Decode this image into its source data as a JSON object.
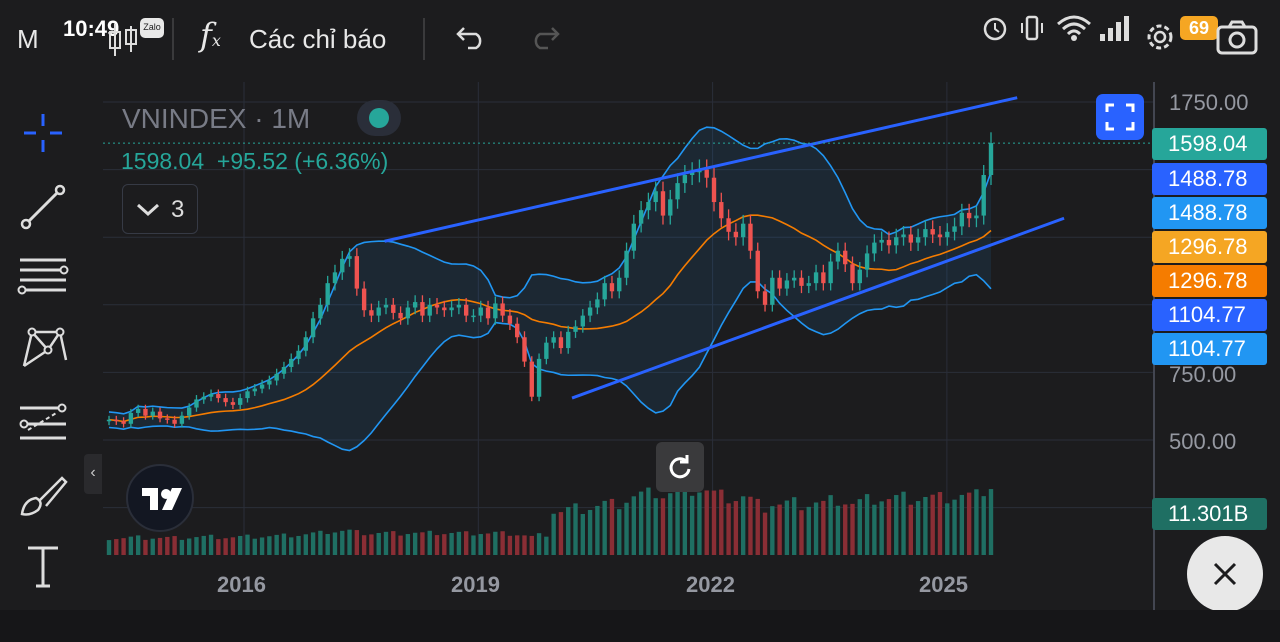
{
  "status_bar": {
    "time": "10:49",
    "battery": "69"
  },
  "toolbar": {
    "interval": "M",
    "indicators_label": "Các chỉ báo",
    "zalo_label": "Zalo"
  },
  "legend": {
    "symbol": "VNINDEX · 1M",
    "ohlc_line": "1598.04  +95.52 (+6.36%)",
    "collapse_count": "3"
  },
  "price_axis": {
    "labels": [
      "1750.00",
      "750.00",
      "500.00"
    ],
    "tags": [
      {
        "text": "1598.04",
        "color": "#26a69a",
        "y": 1598.04
      },
      {
        "text": "1488.78",
        "color": "#2962ff",
        "y": 1488.78
      },
      {
        "text": "1488.78",
        "color": "#2196f3",
        "y": 1488.78
      },
      {
        "text": "1296.78",
        "color": "#f5a623",
        "y": 1296.78
      },
      {
        "text": "1296.78",
        "color": "#f57c00",
        "y": 1296.78
      },
      {
        "text": "1104.77",
        "color": "#2962ff",
        "y": 1104.77
      },
      {
        "text": "1104.77",
        "color": "#2196f3",
        "y": 1104.77
      }
    ],
    "volume_tag": "11.301B"
  },
  "time_axis": {
    "labels": [
      "2016",
      "2019",
      "2022",
      "2025"
    ]
  },
  "colors": {
    "up": "#26a69a",
    "down": "#ef5350",
    "ma": "#f57c00",
    "bands": "#2196f3",
    "channel": "#2962ff",
    "vol_up": "#1f6f63",
    "vol_down": "#8a2e35"
  },
  "chart_data": {
    "type": "candlestick",
    "symbol": "VNINDEX",
    "interval": "1M",
    "y_scale": "linear",
    "last_close": 1598.04,
    "change": 95.52,
    "change_pct": 6.36,
    "yticks": [
      500,
      750,
      1750
    ],
    "xticks": [
      "2016",
      "2019",
      "2022",
      "2025"
    ],
    "closes": [
      575,
      570,
      560,
      600,
      615,
      590,
      605,
      580,
      575,
      560,
      590,
      620,
      650,
      660,
      670,
      655,
      640,
      630,
      655,
      680,
      690,
      705,
      720,
      745,
      770,
      800,
      830,
      880,
      950,
      1000,
      1080,
      1120,
      1170,
      1180,
      1060,
      980,
      960,
      990,
      1000,
      970,
      950,
      990,
      1010,
      960,
      1000,
      990,
      980,
      990,
      1000,
      960,
      960,
      990,
      950,
      1005,
      960,
      930,
      880,
      790,
      660,
      800,
      860,
      880,
      840,
      900,
      920,
      960,
      990,
      1020,
      1080,
      1050,
      1100,
      1200,
      1300,
      1350,
      1380,
      1420,
      1330,
      1390,
      1450,
      1480,
      1490,
      1500,
      1470,
      1380,
      1320,
      1270,
      1250,
      1300,
      1200,
      1050,
      1000,
      1100,
      1060,
      1090,
      1100,
      1070,
      1080,
      1120,
      1080,
      1160,
      1200,
      1150,
      1080,
      1130,
      1190,
      1230,
      1240,
      1220,
      1250,
      1260,
      1230,
      1250,
      1280,
      1260,
      1250,
      1270,
      1290,
      1340,
      1320,
      1330,
      1480,
      1598
    ],
    "overlays": [
      {
        "name": "Bollinger basis (MA)",
        "color": "#f57c00"
      },
      {
        "name": "Bollinger upper",
        "color": "#2196f3"
      },
      {
        "name": "Bollinger lower",
        "color": "#2196f3"
      }
    ],
    "channel": {
      "upper": [
        [
          2017.8,
          1235
        ],
        [
          2025.9,
          1766
        ]
      ],
      "lower": [
        [
          2020.2,
          655
        ],
        [
          2026.5,
          1320
        ]
      ]
    },
    "volume_last": "11.301B"
  }
}
